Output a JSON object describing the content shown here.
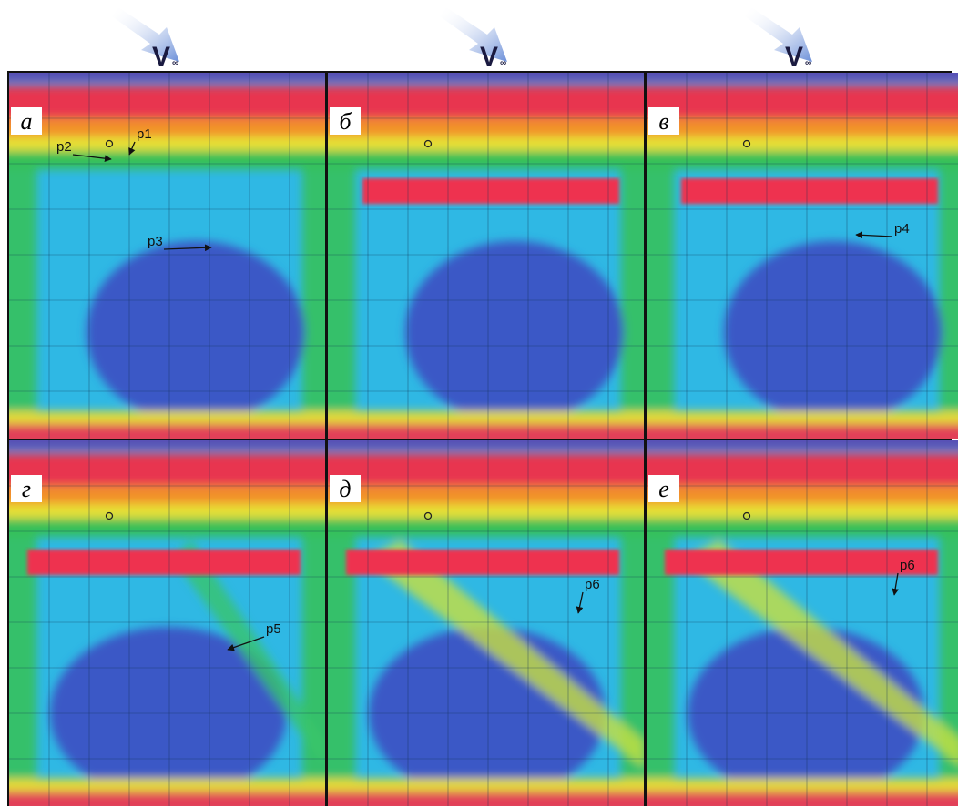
{
  "arrows": [
    {
      "symbol": "V",
      "subscript": "∞"
    },
    {
      "symbol": "V",
      "subscript": "∞"
    },
    {
      "symbol": "V",
      "subscript": "∞"
    }
  ],
  "panels": [
    {
      "label": "а",
      "annotations": [
        "p1",
        "p2",
        "p3"
      ]
    },
    {
      "label": "б"
    },
    {
      "label": "в",
      "annotations": [
        "p4"
      ]
    },
    {
      "label": "г",
      "annotations": [
        "p5"
      ]
    },
    {
      "label": "д",
      "annotations": [
        "p6"
      ]
    },
    {
      "label": "е",
      "annotations": [
        "p6"
      ]
    }
  ]
}
